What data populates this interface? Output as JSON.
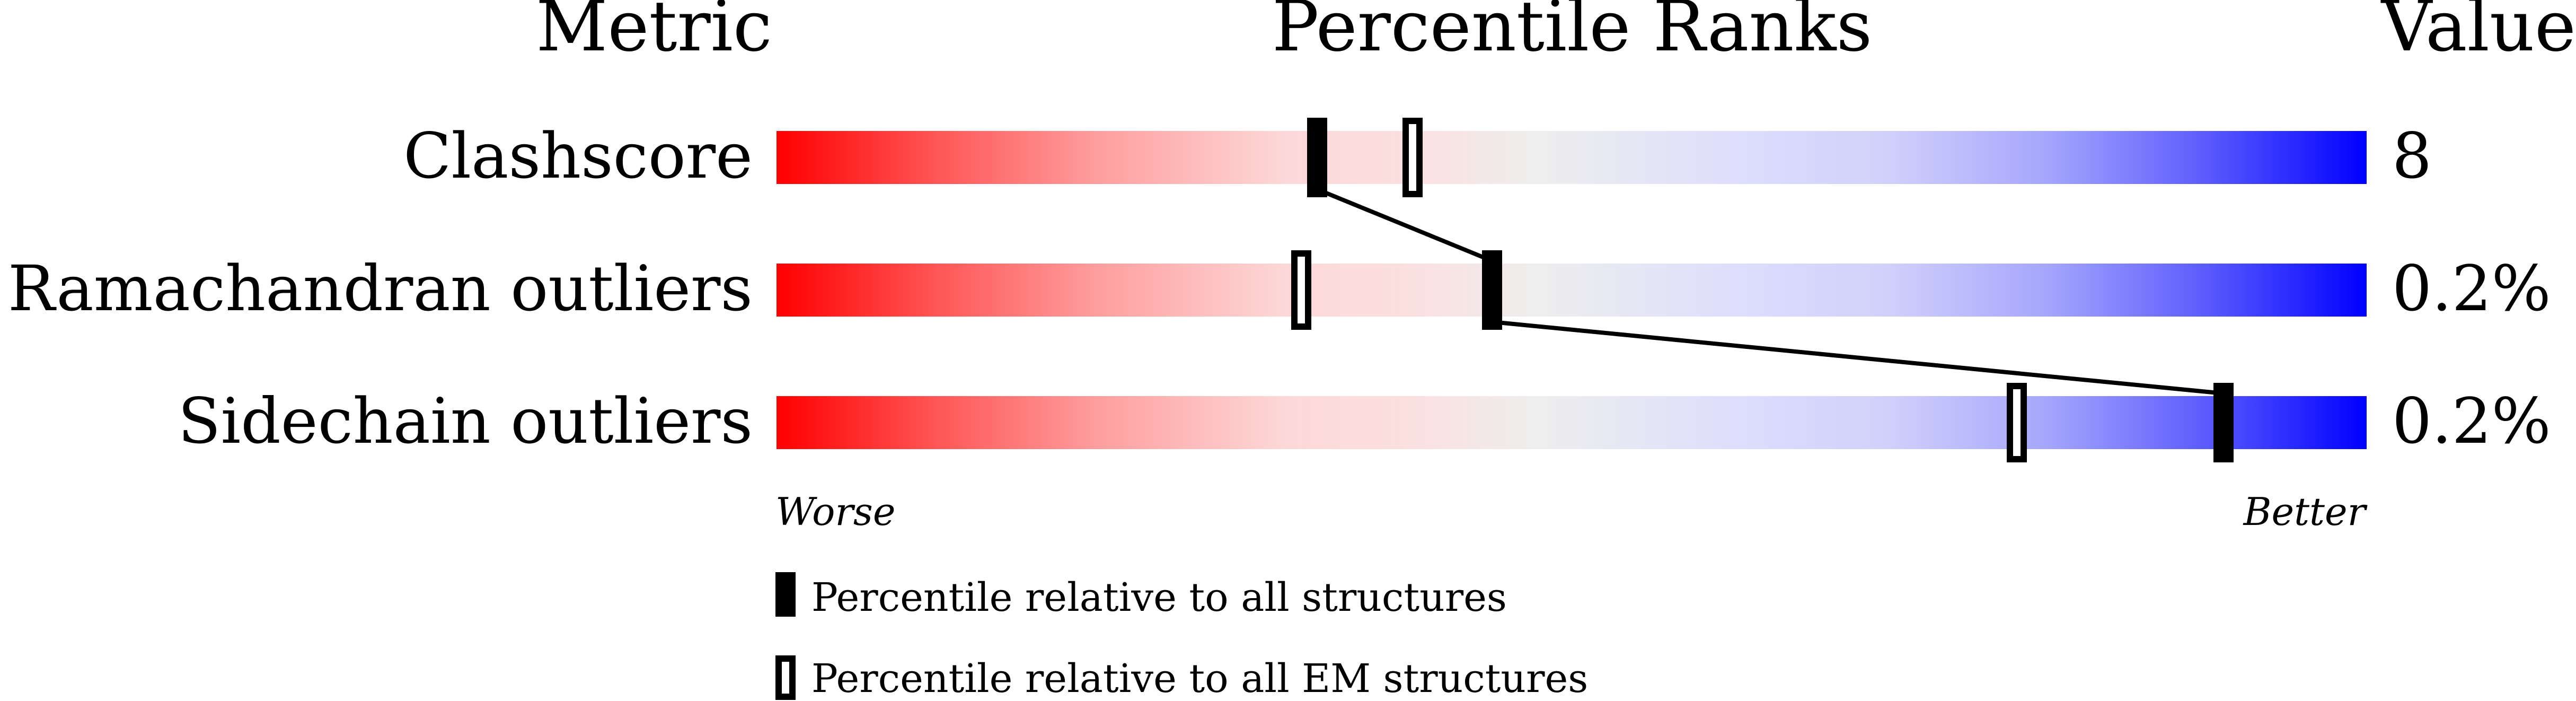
{
  "chart_data": {
    "type": "percentile-bar",
    "headers": {
      "metric": "Metric",
      "ranks": "Percentile Ranks",
      "value": "Value"
    },
    "xlim": [
      0,
      100
    ],
    "axis_labels": {
      "left": "Worse",
      "right": "Better"
    },
    "metrics": [
      {
        "name": "Clashscore",
        "value": "8",
        "percentile_all": 34,
        "percentile_em": 40
      },
      {
        "name": "Ramachandran outliers",
        "value": "0.2%",
        "percentile_all": 45,
        "percentile_em": 33
      },
      {
        "name": "Sidechain outliers",
        "value": "0.2%",
        "percentile_all": 91,
        "percentile_em": 78
      }
    ],
    "legend": [
      {
        "marker": "filled",
        "label": "Percentile relative to all structures"
      },
      {
        "marker": "open",
        "label": "Percentile relative to all EM structures"
      }
    ],
    "colors": {
      "worse": "#ff0000",
      "middle": "#eeeeee",
      "better": "#0000ff"
    }
  }
}
